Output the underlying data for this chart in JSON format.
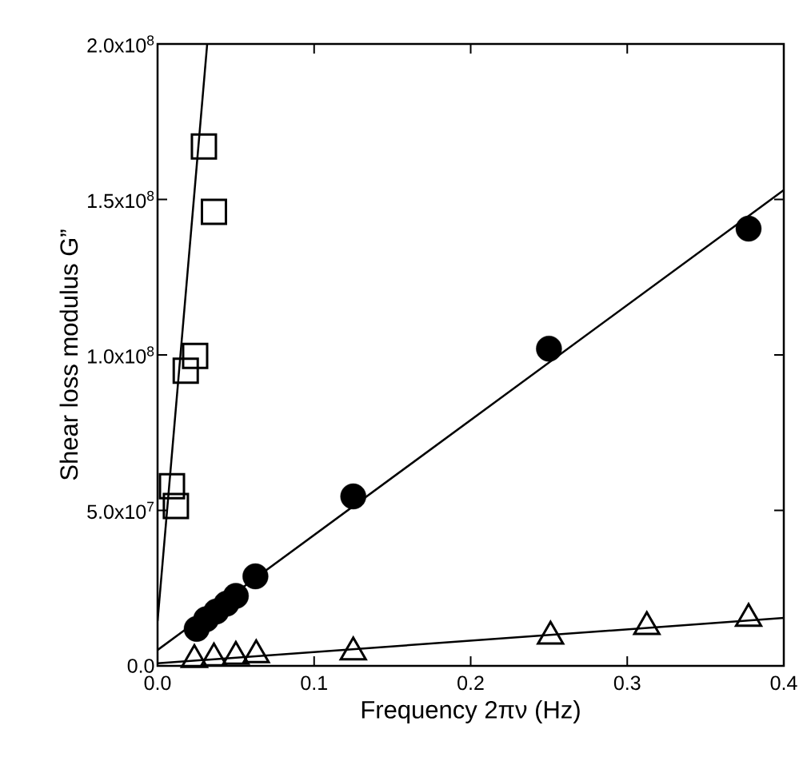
{
  "chart_data": {
    "type": "scatter",
    "xlabel": "Frequency 2πν (Hz)",
    "ylabel": "Shear loss modulus  G”",
    "xlim": [
      0,
      0.4
    ],
    "ylim": [
      0,
      200000000
    ],
    "xticks": [
      {
        "value": 0,
        "label": "0.0"
      },
      {
        "value": 0.1,
        "label": "0.1"
      },
      {
        "value": 0.2,
        "label": "0.2"
      },
      {
        "value": 0.3,
        "label": "0.3"
      },
      {
        "value": 0.4,
        "label": "0.4"
      }
    ],
    "yticks": [
      {
        "value": 0,
        "label": "0.0"
      },
      {
        "value": 50000000,
        "label": "5.0x10$^{7}$"
      },
      {
        "value": 100000000,
        "label": "1.0x10$^{8}$"
      },
      {
        "value": 150000000,
        "label": "1.5x10$^{8}$"
      },
      {
        "value": 200000000,
        "label": "2.0x10$^{8}$"
      }
    ],
    "grid": false,
    "series": [
      {
        "marker": "square",
        "color": "#000000",
        "x": [
          0.0092,
          0.0117,
          0.018,
          0.024,
          0.0296,
          0.036
        ],
        "values": [
          57800000,
          51400000,
          94900000,
          99700000,
          167000000,
          146000000
        ]
      },
      {
        "marker": "circle",
        "color": "#000000",
        "x": [
          0.025,
          0.031,
          0.0375,
          0.044,
          0.05,
          0.0625,
          0.125,
          0.25,
          0.3775
        ],
        "values": [
          11900000,
          15000000,
          17500000,
          20000000,
          22500000,
          28800000,
          54500000,
          102000000,
          140600000
        ]
      },
      {
        "marker": "triangle",
        "color": "#000000",
        "x": [
          0.0235,
          0.036,
          0.05,
          0.063,
          0.125,
          0.251,
          0.3125,
          0.3775
        ],
        "values": [
          2000000,
          2500000,
          3000000,
          3500000,
          4400000,
          9500000,
          12600000,
          15200000
        ]
      },
      {
        "type": "line",
        "marker": "none",
        "color": "#000000",
        "x": [
          0,
          0.0317
        ],
        "values": [
          14400000,
          200000000
        ]
      },
      {
        "type": "line",
        "marker": "none",
        "color": "#000000",
        "x": [
          0,
          0.4
        ],
        "values": [
          5100000,
          153000000
        ]
      },
      {
        "type": "line",
        "marker": "none",
        "color": "#000000",
        "x": [
          0,
          0.4
        ],
        "values": [
          800000,
          15400000
        ]
      }
    ]
  }
}
